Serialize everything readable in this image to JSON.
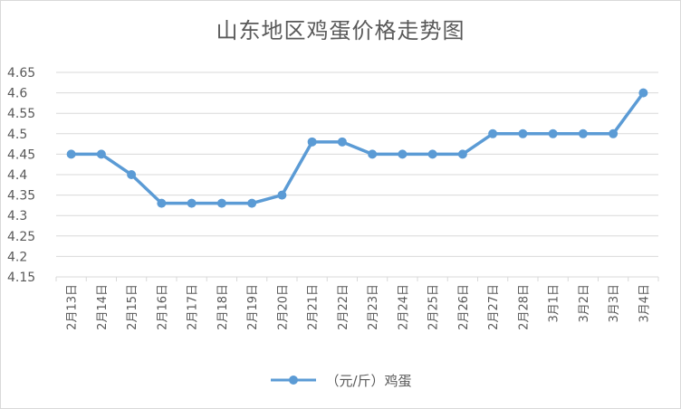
{
  "chart_data": {
    "type": "line",
    "title": "山东地区鸡蛋价格走势图",
    "categories": [
      "2月13日",
      "2月14日",
      "2月15日",
      "2月16日",
      "2月17日",
      "2月18日",
      "2月19日",
      "2月20日",
      "2月21日",
      "2月22日",
      "2月23日",
      "2月24日",
      "2月25日",
      "2月26日",
      "2月27日",
      "2月28日",
      "3月1日",
      "3月2日",
      "3月3日",
      "3月4日"
    ],
    "series": [
      {
        "name": "（元/斤）鸡蛋",
        "values": [
          4.45,
          4.45,
          4.4,
          4.33,
          4.33,
          4.33,
          4.33,
          4.35,
          4.48,
          4.48,
          4.45,
          4.45,
          4.45,
          4.45,
          4.5,
          4.5,
          4.5,
          4.5,
          4.5,
          4.6
        ]
      }
    ],
    "ylim": [
      4.15,
      4.65
    ],
    "yticks": [
      "4.15",
      "4.2",
      "4.25",
      "4.3",
      "4.35",
      "4.4",
      "4.45",
      "4.5",
      "4.55",
      "4.6",
      "4.65"
    ],
    "xlabel": "",
    "ylabel": "",
    "grid": true,
    "legend": "bottom",
    "colors": {
      "series": "#5b9bd5",
      "grid": "#d9d9d9",
      "text": "#595959"
    }
  }
}
